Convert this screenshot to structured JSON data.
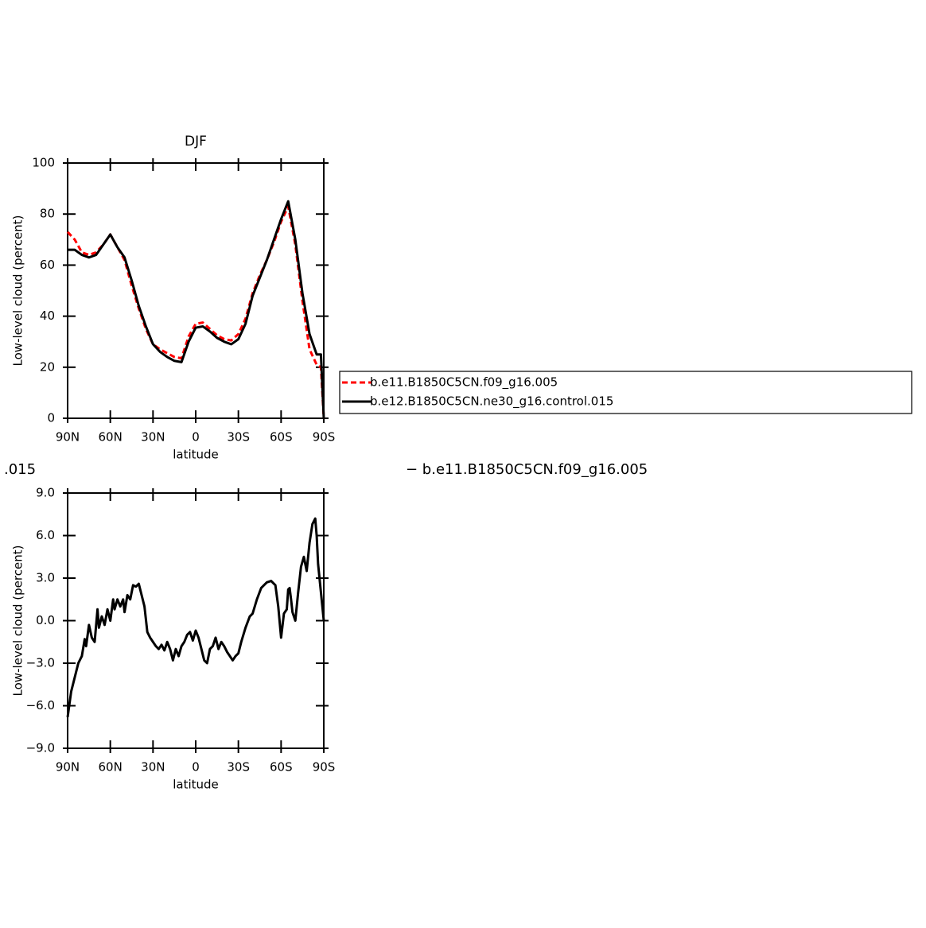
{
  "chart_data": [
    {
      "type": "line",
      "title": "DJF",
      "x_label": "latitude",
      "y_label": "Low-level cloud (percent)",
      "x": [
        90,
        85,
        80,
        75,
        70,
        65,
        60,
        55,
        50,
        45,
        40,
        35,
        30,
        25,
        20,
        15,
        10,
        5,
        0,
        -5,
        -10,
        -15,
        -20,
        -25,
        -30,
        -35,
        -40,
        -45,
        -50,
        -55,
        -60,
        -65,
        -70,
        -75,
        -80,
        -85,
        -88,
        -90
      ],
      "series": [
        {
          "name": "b.e11.B1850C5CN.f09_g16.005",
          "color": "#ff0000",
          "linestyle": "dashed",
          "values": [
            73,
            70,
            65,
            64,
            65,
            68,
            72,
            67,
            62,
            52,
            43,
            35,
            29,
            27,
            25.5,
            24,
            23.5,
            32,
            37,
            37.5,
            35,
            32.5,
            31,
            30.5,
            33,
            39,
            49,
            56,
            62,
            69,
            77,
            83,
            68,
            46,
            27,
            21,
            20,
            0
          ]
        },
        {
          "name": "b.e12.B1850C5CN.ne30_g16.control.015",
          "color": "#000000",
          "linestyle": "solid",
          "values": [
            66,
            66,
            64,
            63,
            64,
            68,
            72,
            67,
            63,
            54,
            44,
            36,
            29,
            26,
            24,
            22.5,
            22,
            30,
            35.5,
            36,
            34,
            31.5,
            30,
            29,
            31,
            37,
            48,
            55,
            62,
            70,
            78,
            85,
            70,
            49,
            33,
            25,
            25,
            0
          ]
        }
      ],
      "xlim": [
        90,
        -90
      ],
      "xticks": [
        {
          "value": 90,
          "label": "90N"
        },
        {
          "value": 60,
          "label": "60N"
        },
        {
          "value": 30,
          "label": "30N"
        },
        0,
        {
          "value": -30,
          "label": "30S"
        },
        {
          "value": -60,
          "label": "60S"
        },
        {
          "value": -90,
          "label": "90S"
        }
      ],
      "ylim": [
        0,
        100
      ],
      "yticks": [
        0,
        20,
        40,
        60,
        80,
        100
      ],
      "legend": "right"
    },
    {
      "type": "line",
      "x_label": "latitude",
      "y_label": "Low-level cloud (percent)",
      "annotations": [
        ".015",
        "− b.e11.B1850C5CN.f09_g16.005"
      ],
      "x": [
        90,
        87.5,
        85,
        82.5,
        80,
        78,
        77,
        75,
        73,
        71,
        69,
        68,
        66,
        64,
        62,
        60,
        58,
        57,
        55,
        53,
        51,
        50,
        48,
        46,
        44,
        42,
        40,
        38,
        36,
        34,
        32,
        30,
        28,
        26,
        24,
        22,
        20,
        18,
        16,
        14,
        12,
        10,
        8,
        6,
        4,
        2,
        0,
        -2,
        -4,
        -6,
        -8,
        -10,
        -12,
        -14,
        -16,
        -18,
        -20,
        -22,
        -24,
        -26,
        -28,
        -30,
        -32,
        -35,
        -38,
        -40,
        -43,
        -46,
        -50,
        -53,
        -56,
        -58,
        -60,
        -62,
        -64,
        -65,
        -66,
        -67,
        -68,
        -70,
        -72,
        -74,
        -76,
        -78,
        -80,
        -82,
        -84,
        -85,
        -86,
        -88,
        -90
      ],
      "values": [
        -6.8,
        -5.0,
        -4.0,
        -3.0,
        -2.5,
        -1.3,
        -1.8,
        -0.3,
        -1.2,
        -1.5,
        0.8,
        -0.5,
        0.3,
        -0.3,
        0.8,
        0.0,
        1.5,
        0.8,
        1.5,
        1.0,
        1.5,
        0.6,
        1.8,
        1.5,
        2.5,
        2.4,
        2.6,
        1.8,
        1.0,
        -0.8,
        -1.2,
        -1.5,
        -1.8,
        -2.0,
        -1.7,
        -2.1,
        -1.5,
        -2.0,
        -2.8,
        -2.0,
        -2.5,
        -1.8,
        -1.5,
        -1.0,
        -0.8,
        -1.4,
        -0.7,
        -1.2,
        -2.0,
        -2.8,
        -3.0,
        -2.0,
        -1.8,
        -1.2,
        -2.0,
        -1.5,
        -1.8,
        -2.2,
        -2.5,
        -2.8,
        -2.5,
        -2.3,
        -1.5,
        -0.5,
        0.3,
        0.5,
        1.5,
        2.3,
        2.7,
        2.8,
        2.5,
        1.0,
        -1.2,
        0.5,
        0.8,
        2.2,
        2.3,
        1.5,
        0.6,
        0.0,
        2.0,
        3.8,
        4.5,
        3.5,
        5.5,
        6.8,
        7.2,
        6.0,
        4.0,
        2.0,
        0.0
      ],
      "color": "#000000",
      "xlim": [
        90,
        -90
      ],
      "xticks": [
        {
          "value": 90,
          "label": "90N"
        },
        {
          "value": 60,
          "label": "60N"
        },
        {
          "value": 30,
          "label": "30N"
        },
        0,
        {
          "value": -30,
          "label": "30S"
        },
        {
          "value": -60,
          "label": "60S"
        },
        {
          "value": -90,
          "label": "90S"
        }
      ],
      "ylim": [
        -9,
        9
      ],
      "yticks": [
        {
          "value": -9,
          "label": "−9.0"
        },
        {
          "value": -6,
          "label": "−6.0"
        },
        {
          "value": -3,
          "label": "−3.0"
        },
        {
          "value": 0,
          "label": "0.0"
        },
        {
          "value": 3,
          "label": "3.0"
        },
        {
          "value": 6,
          "label": "6.0"
        },
        {
          "value": 9,
          "label": "9.0"
        }
      ]
    }
  ]
}
